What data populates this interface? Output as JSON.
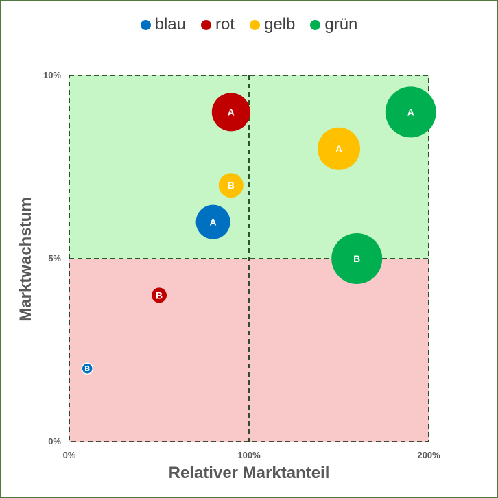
{
  "chart_data": {
    "type": "scatter",
    "subtype": "bubble",
    "xlabel": "Relativer Marktanteil",
    "ylabel": "Marktwachstum",
    "xlim": [
      0,
      200
    ],
    "ylim": [
      0,
      10
    ],
    "x_ticks": [
      "0%",
      "100%",
      "200%"
    ],
    "y_ticks": [
      "0%",
      "5%",
      "10%"
    ],
    "legend_position": "top",
    "quadrant_split": {
      "x": 100,
      "y": 5
    },
    "quadrant_colors": {
      "upper": "#c6f5c6",
      "lower": "#f9c8c8"
    },
    "series": [
      {
        "name": "blau",
        "color": "#0070c0",
        "points": [
          {
            "label": "A",
            "x": 80,
            "y": 6,
            "size": 25
          },
          {
            "label": "B",
            "x": 10,
            "y": 2,
            "size": 8
          }
        ]
      },
      {
        "name": "rot",
        "color": "#c00000",
        "points": [
          {
            "label": "A",
            "x": 90,
            "y": 9,
            "size": 28
          },
          {
            "label": "B",
            "x": 50,
            "y": 4,
            "size": 11
          }
        ]
      },
      {
        "name": "gelb",
        "color": "#ffc000",
        "points": [
          {
            "label": "A",
            "x": 150,
            "y": 8,
            "size": 31
          },
          {
            "label": "B",
            "x": 90,
            "y": 7,
            "size": 18
          }
        ]
      },
      {
        "name": "grün",
        "color": "#00b050",
        "points": [
          {
            "label": "A",
            "x": 190,
            "y": 9,
            "size": 37
          },
          {
            "label": "B",
            "x": 160,
            "y": 5,
            "size": 37
          }
        ]
      }
    ]
  }
}
